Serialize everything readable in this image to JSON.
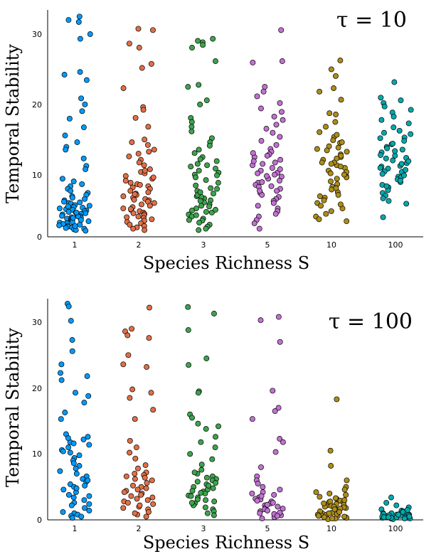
{
  "chart_data": [
    {
      "type": "scatter",
      "subtype": "jittered strip plot",
      "annotation": "τ = 10",
      "xlabel": "Species Richness S",
      "ylabel": "Temporal Stability",
      "categories": [
        "1",
        "2",
        "3",
        "5",
        "10",
        "100"
      ],
      "ylim": [
        0,
        33
      ],
      "yticks": [
        0,
        10,
        20,
        30
      ],
      "grid": false,
      "series": [
        {
          "name": "1",
          "color": "#009AFA",
          "values": [
            32.6,
            32.1,
            31.8,
            30.0,
            29.3,
            24.4,
            24.0,
            23.2,
            20.5,
            19.6,
            18.6,
            17.5,
            16.2,
            15.0,
            14.0,
            13.3,
            12.9,
            11.6,
            10.5,
            10.0,
            8.6,
            8.2,
            7.8,
            7.5,
            7.1,
            6.8,
            6.5,
            6.2,
            6.0,
            5.8,
            5.6,
            5.4,
            5.2,
            5.0,
            4.9,
            4.7,
            4.6,
            4.4,
            4.3,
            4.1,
            4.0,
            3.9,
            3.8,
            3.7,
            3.6,
            3.5,
            3.4,
            3.3,
            3.2,
            3.1,
            3.0,
            2.9,
            2.8,
            2.7,
            2.6,
            2.5,
            2.4,
            2.3,
            2.2,
            2.1,
            2.0,
            1.9,
            1.8,
            1.7,
            1.6,
            1.5,
            1.4,
            1.3,
            1.2,
            1.1,
            1.0,
            0.9,
            3.0,
            2.5,
            4.2,
            3.6,
            2.8,
            1.6,
            5.1,
            4.5
          ]
        },
        {
          "name": "2",
          "color": "#E26F46",
          "values": [
            30.8,
            30.6,
            28.6,
            28.0,
            25.6,
            25.0,
            22.0,
            19.2,
            18.8,
            17.6,
            16.3,
            14.4,
            14.0,
            13.6,
            12.9,
            12.3,
            11.9,
            11.4,
            10.6,
            10.0,
            9.6,
            9.4,
            9.0,
            8.6,
            8.3,
            8.0,
            7.8,
            7.5,
            7.3,
            7.1,
            6.8,
            6.6,
            6.4,
            6.2,
            6.0,
            5.8,
            5.6,
            5.4,
            5.2,
            5.0,
            4.8,
            4.6,
            4.4,
            4.2,
            4.0,
            3.8,
            3.6,
            3.4,
            3.2,
            3.0,
            2.8,
            2.6,
            2.4,
            2.2,
            2.0,
            1.8,
            1.6,
            1.4,
            1.2,
            1.0,
            5.5,
            6.3,
            4.1,
            3.5,
            2.9,
            7.7,
            8.8,
            9.8,
            11.0,
            12.6
          ]
        },
        {
          "name": "3",
          "color": "#3DA44D",
          "values": [
            29.3,
            29.0,
            28.8,
            28.4,
            28.0,
            26.0,
            22.5,
            22.2,
            20.2,
            19.6,
            17.6,
            17.0,
            16.3,
            15.6,
            14.6,
            14.0,
            13.5,
            12.9,
            12.4,
            11.8,
            11.2,
            10.8,
            10.4,
            10.1,
            9.8,
            9.5,
            9.2,
            8.8,
            8.4,
            8.0,
            7.6,
            7.2,
            6.8,
            6.4,
            6.0,
            5.7,
            5.4,
            5.1,
            4.8,
            4.5,
            4.2,
            3.9,
            3.6,
            3.3,
            3.0,
            2.7,
            2.4,
            2.1,
            1.8,
            1.5,
            1.2,
            1.0,
            5.9,
            4.6,
            3.7,
            6.2,
            7.1,
            9.1,
            10.6,
            11.5,
            4.0,
            3.2,
            2.5,
            5.3,
            6.6
          ]
        },
        {
          "name": "5",
          "color": "#C271D2",
          "values": [
            30.6,
            26.0,
            25.8,
            22.2,
            21.5,
            20.8,
            19.8,
            19.0,
            18.5,
            17.8,
            17.3,
            16.6,
            16.0,
            15.4,
            14.8,
            14.2,
            13.6,
            13.0,
            12.6,
            12.2,
            11.8,
            11.4,
            11.0,
            10.6,
            10.2,
            9.8,
            9.5,
            9.2,
            8.9,
            8.6,
            8.3,
            8.0,
            7.7,
            7.4,
            7.1,
            6.8,
            6.5,
            6.2,
            5.9,
            5.6,
            5.3,
            5.0,
            4.6,
            4.2,
            3.8,
            3.4,
            3.0,
            2.5,
            2.0,
            1.2,
            10.8,
            9.0,
            12.0,
            11.2,
            8.1,
            7.5,
            10.0,
            9.4,
            12.4,
            6.8
          ]
        },
        {
          "name": "10",
          "color": "#AC8D18",
          "values": [
            26.1,
            24.8,
            23.8,
            22.0,
            21.5,
            20.3,
            18.3,
            18.1,
            17.0,
            16.3,
            15.5,
            14.8,
            14.3,
            13.9,
            13.4,
            13.0,
            12.6,
            12.2,
            11.8,
            11.4,
            11.0,
            10.6,
            10.2,
            9.8,
            9.4,
            9.0,
            8.6,
            8.2,
            7.8,
            7.4,
            7.0,
            6.6,
            6.2,
            5.8,
            5.4,
            5.0,
            4.6,
            4.2,
            3.8,
            3.4,
            3.0,
            2.6,
            2.3,
            12.0,
            11.0,
            9.6,
            10.4,
            13.2,
            14.0,
            8.8,
            7.2,
            15.1,
            6.0,
            4.8,
            12.8,
            11.6,
            10.8,
            9.2
          ]
        },
        {
          "name": "100",
          "color": "#00A9AD",
          "values": [
            22.9,
            20.6,
            20.2,
            19.8,
            19.3,
            18.8,
            18.4,
            17.8,
            17.3,
            16.8,
            16.2,
            15.7,
            15.2,
            14.7,
            14.2,
            13.7,
            13.3,
            12.9,
            12.5,
            12.1,
            11.7,
            11.3,
            10.9,
            10.5,
            10.1,
            9.7,
            9.3,
            8.9,
            8.5,
            8.1,
            7.7,
            7.3,
            6.9,
            6.5,
            6.1,
            5.7,
            5.3,
            4.9,
            2.9,
            12.0,
            11.2,
            10.4,
            9.6,
            8.8,
            13.8,
            14.6,
            15.4,
            11.6,
            10.8,
            9.9,
            8.3,
            7.5,
            12.7,
            13.1,
            9.1,
            10.2
          ]
        }
      ]
    },
    {
      "type": "scatter",
      "subtype": "jittered strip plot",
      "annotation": "τ = 100",
      "xlabel": "Species Richness S",
      "ylabel": "Temporal Stability",
      "categories": [
        "1",
        "2",
        "3",
        "5",
        "10",
        "100"
      ],
      "ylim": [
        0,
        33
      ],
      "yticks": [
        0,
        10,
        20,
        30
      ],
      "grid": false,
      "series": [
        {
          "name": "1",
          "color": "#009AFA",
          "values": [
            32.8,
            32.4,
            30.2,
            27.3,
            25.6,
            23.6,
            22.3,
            21.8,
            21.2,
            19.3,
            18.8,
            17.8,
            16.3,
            15.3,
            13.0,
            12.6,
            12.2,
            11.8,
            11.4,
            11.0,
            10.6,
            10.2,
            9.8,
            9.4,
            9.0,
            8.6,
            8.2,
            7.8,
            7.4,
            7.0,
            6.6,
            6.2,
            5.8,
            5.4,
            5.0,
            4.6,
            4.2,
            3.8,
            3.4,
            3.0,
            2.6,
            2.2,
            1.8,
            1.4,
            1.0,
            0.6,
            0.3,
            5.2,
            4.8,
            6.0,
            3.6,
            2.4,
            1.2,
            0.8,
            0.5,
            12.4,
            11.6,
            10.4
          ]
        },
        {
          "name": "2",
          "color": "#E26F46",
          "values": [
            32.2,
            29.0,
            28.6,
            28.0,
            27.6,
            25.0,
            23.6,
            23.2,
            19.8,
            19.3,
            18.5,
            16.7,
            15.3,
            12.0,
            11.0,
            10.2,
            9.3,
            8.3,
            7.8,
            7.2,
            6.8,
            6.4,
            6.0,
            5.6,
            5.2,
            4.8,
            4.4,
            4.0,
            3.6,
            3.2,
            2.8,
            2.4,
            2.0,
            1.6,
            1.2,
            0.8,
            0.5,
            5.0,
            4.2,
            3.4,
            2.6,
            1.8,
            1.0,
            6.2,
            6.6,
            7.0,
            4.6,
            3.8,
            3.0,
            2.2
          ]
        },
        {
          "name": "3",
          "color": "#3DA44D",
          "values": [
            32.3,
            31.3,
            28.8,
            24.5,
            23.5,
            19.5,
            19.3,
            16.0,
            15.5,
            14.6,
            14.2,
            13.8,
            12.6,
            11.8,
            11.0,
            10.0,
            9.2,
            8.4,
            7.6,
            7.0,
            6.6,
            6.2,
            5.8,
            5.4,
            5.0,
            4.6,
            4.3,
            4.0,
            3.7,
            3.4,
            3.1,
            2.8,
            2.5,
            2.2,
            1.9,
            1.6,
            1.3,
            1.0,
            0.7,
            4.4,
            4.8,
            3.6,
            5.2,
            6.0,
            2.6,
            3.0,
            4.1,
            5.6,
            6.4,
            7.2
          ]
        },
        {
          "name": "5",
          "color": "#C271D2",
          "values": [
            30.8,
            30.3,
            27.0,
            19.6,
            17.0,
            16.5,
            15.3,
            12.3,
            11.8,
            10.3,
            8.0,
            6.6,
            6.0,
            5.5,
            5.0,
            4.6,
            4.2,
            3.8,
            3.4,
            3.1,
            2.8,
            2.5,
            2.2,
            1.9,
            1.6,
            1.3,
            1.0,
            0.7,
            0.4,
            0.2,
            3.2,
            2.6,
            2.0,
            1.4,
            0.9,
            4.0,
            3.6,
            2.3,
            1.7,
            1.1,
            0.6,
            2.9
          ]
        },
        {
          "name": "10",
          "color": "#AC8D18",
          "values": [
            18.3,
            10.5,
            8.2,
            6.0,
            5.0,
            4.6,
            4.2,
            3.8,
            3.5,
            3.2,
            2.9,
            2.6,
            2.4,
            2.2,
            2.0,
            1.8,
            1.6,
            1.4,
            1.2,
            1.0,
            0.8,
            0.6,
            0.4,
            0.2,
            0.1,
            2.7,
            2.3,
            1.9,
            1.5,
            1.1,
            0.7,
            0.3,
            3.3,
            2.8,
            2.1,
            1.3,
            0.9,
            0.5,
            3.0,
            2.5,
            1.7,
            1.2,
            0.8,
            0.4,
            2.0,
            1.6,
            1.0,
            0.6,
            0.2,
            4.0
          ]
        },
        {
          "name": "100",
          "color": "#00A9AD",
          "values": [
            3.4,
            2.6,
            2.2,
            1.9,
            1.6,
            1.4,
            1.2,
            1.0,
            0.9,
            0.8,
            0.7,
            0.6,
            0.5,
            0.4,
            0.3,
            0.2,
            0.1,
            1.1,
            0.9,
            0.7,
            0.5,
            0.3,
            1.3,
            0.8,
            0.6,
            0.4,
            0.2,
            1.5,
            1.0,
            0.6,
            0.3,
            0.5,
            0.4,
            0.2,
            0.7,
            0.9,
            0.3,
            0.6,
            0.4,
            1.2,
            0.8,
            0.5
          ]
        }
      ]
    }
  ]
}
